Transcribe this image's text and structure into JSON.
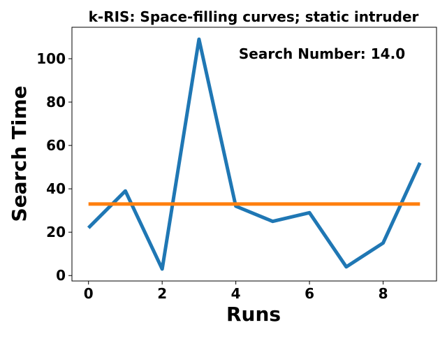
{
  "chart_data": {
    "type": "line",
    "title": "k-RIS: Space-filling curves; static intruder",
    "xlabel": "Runs",
    "ylabel": "Search Time",
    "annotation": "Search Number: 14.0",
    "xlim": [
      -0.45,
      9.45
    ],
    "ylim": [
      -2.5,
      114.5
    ],
    "x_ticks": [
      0,
      2,
      4,
      6,
      8
    ],
    "y_ticks": [
      0,
      20,
      40,
      60,
      80,
      100
    ],
    "grid": false,
    "series": [
      {
        "color": "#1f77b4",
        "x": [
          0,
          1,
          2,
          3,
          4,
          5,
          6,
          7,
          8,
          9
        ],
        "y": [
          22,
          39,
          3,
          109,
          32,
          25,
          29,
          4,
          15,
          52
        ]
      },
      {
        "color": "#ff7f0e",
        "x": [
          0,
          9
        ],
        "y": [
          33,
          33
        ]
      }
    ]
  }
}
